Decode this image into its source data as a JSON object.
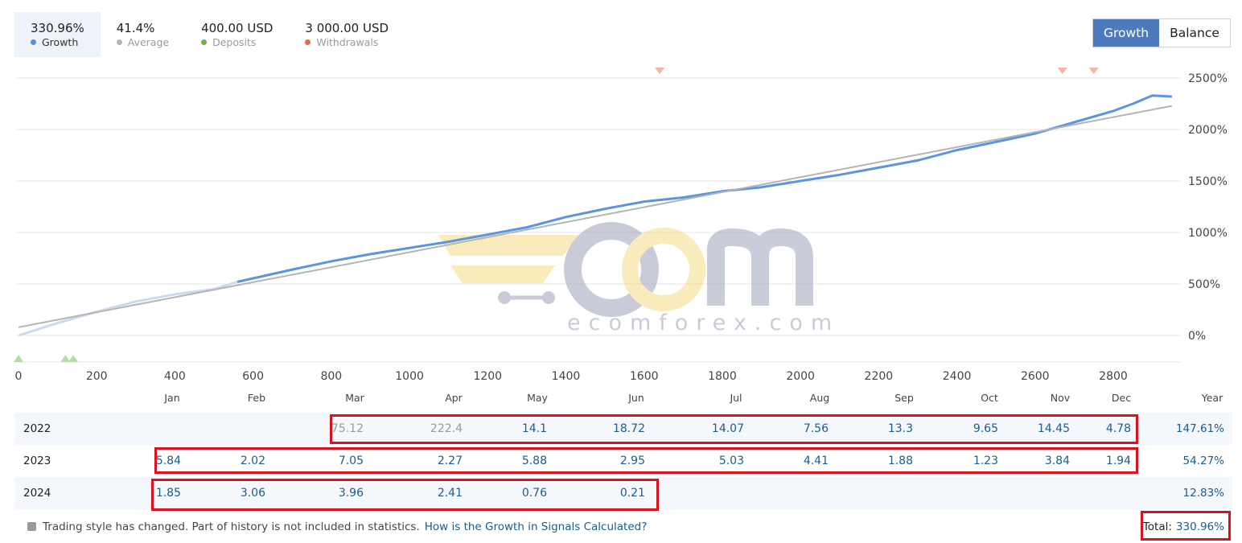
{
  "stats": [
    {
      "value": "330.96%",
      "label": "Growth",
      "color": "#5b8fd6",
      "active": true
    },
    {
      "value": "41.4%",
      "label": "Average",
      "color": "#b4b4b4",
      "active": false
    },
    {
      "value": "400.00 USD",
      "label": "Deposits",
      "color": "#6cb14f",
      "active": false
    },
    {
      "value": "3 000.00 USD",
      "label": "Withdrawals",
      "color": "#e86a4f",
      "active": false
    }
  ],
  "toggle": {
    "growth": "Growth",
    "balance": "Balance"
  },
  "watermark": {
    "text": "ecomforex.com"
  },
  "chart_data": {
    "type": "line",
    "x_ticks": [
      "0",
      "200",
      "400",
      "600",
      "800",
      "1000",
      "1200",
      "1400",
      "1600",
      "1800",
      "2000",
      "2200",
      "2400",
      "2600",
      "2800"
    ],
    "y_ticks": [
      "2500%",
      "2000%",
      "1500%",
      "1000%",
      "500%",
      "0%"
    ],
    "xlim": [
      0,
      2900
    ],
    "ylim": [
      -250,
      2500
    ],
    "series": [
      {
        "color": "#5b94df",
        "points": [
          [
            0,
            0
          ],
          [
            100,
            120
          ],
          [
            200,
            230
          ],
          [
            300,
            330
          ],
          [
            400,
            400
          ],
          [
            500,
            450
          ],
          [
            560,
            520
          ],
          [
            700,
            640
          ],
          [
            800,
            720
          ],
          [
            900,
            790
          ],
          [
            1000,
            850
          ],
          [
            1100,
            910
          ],
          [
            1200,
            980
          ],
          [
            1300,
            1050
          ],
          [
            1400,
            1150
          ],
          [
            1500,
            1230
          ],
          [
            1600,
            1300
          ],
          [
            1700,
            1340
          ],
          [
            1800,
            1400
          ],
          [
            1900,
            1440
          ],
          [
            2000,
            1500
          ],
          [
            2100,
            1560
          ],
          [
            2200,
            1630
          ],
          [
            2300,
            1700
          ],
          [
            2400,
            1800
          ],
          [
            2500,
            1880
          ],
          [
            2600,
            1960
          ],
          [
            2700,
            2070
          ],
          [
            2800,
            2180
          ],
          [
            2850,
            2250
          ],
          [
            2900,
            2330
          ],
          [
            2950,
            2320
          ]
        ]
      },
      {
        "color": "#b4b4b4",
        "points": [
          [
            0,
            80
          ],
          [
            2950,
            2230
          ]
        ]
      }
    ],
    "markers": {
      "withdrawals": [
        1640,
        2670,
        2750
      ],
      "deposits": [
        0,
        120,
        140
      ]
    },
    "months": [
      "Jan",
      "Feb",
      "Mar",
      "Apr",
      "May",
      "Jun",
      "Jul",
      "Aug",
      "Sep",
      "Oct",
      "Nov",
      "Dec",
      "Year"
    ],
    "table": [
      {
        "year": "2022",
        "values": [
          "",
          "",
          "75.12",
          "222.4",
          "14.1",
          "18.72",
          "14.07",
          "7.56",
          "13.3",
          "9.65",
          "14.45",
          "4.78"
        ],
        "total": "147.61%"
      },
      {
        "year": "2023",
        "values": [
          "5.84",
          "2.02",
          "7.05",
          "2.27",
          "5.88",
          "2.95",
          "5.03",
          "4.41",
          "1.88",
          "1.23",
          "3.84",
          "1.94"
        ],
        "total": "54.27%"
      },
      {
        "year": "2024",
        "values": [
          "1.85",
          "3.06",
          "3.96",
          "2.41",
          "0.76",
          "0.21",
          "",
          "",
          "",
          "",
          "",
          ""
        ],
        "total": "12.83%"
      }
    ]
  },
  "footnote": {
    "text": "Trading style has changed. Part of history is not included in statistics.",
    "link": "How is the Growth in Signals Calculated?"
  },
  "total": {
    "label": "Total:",
    "value": "330.96%"
  }
}
